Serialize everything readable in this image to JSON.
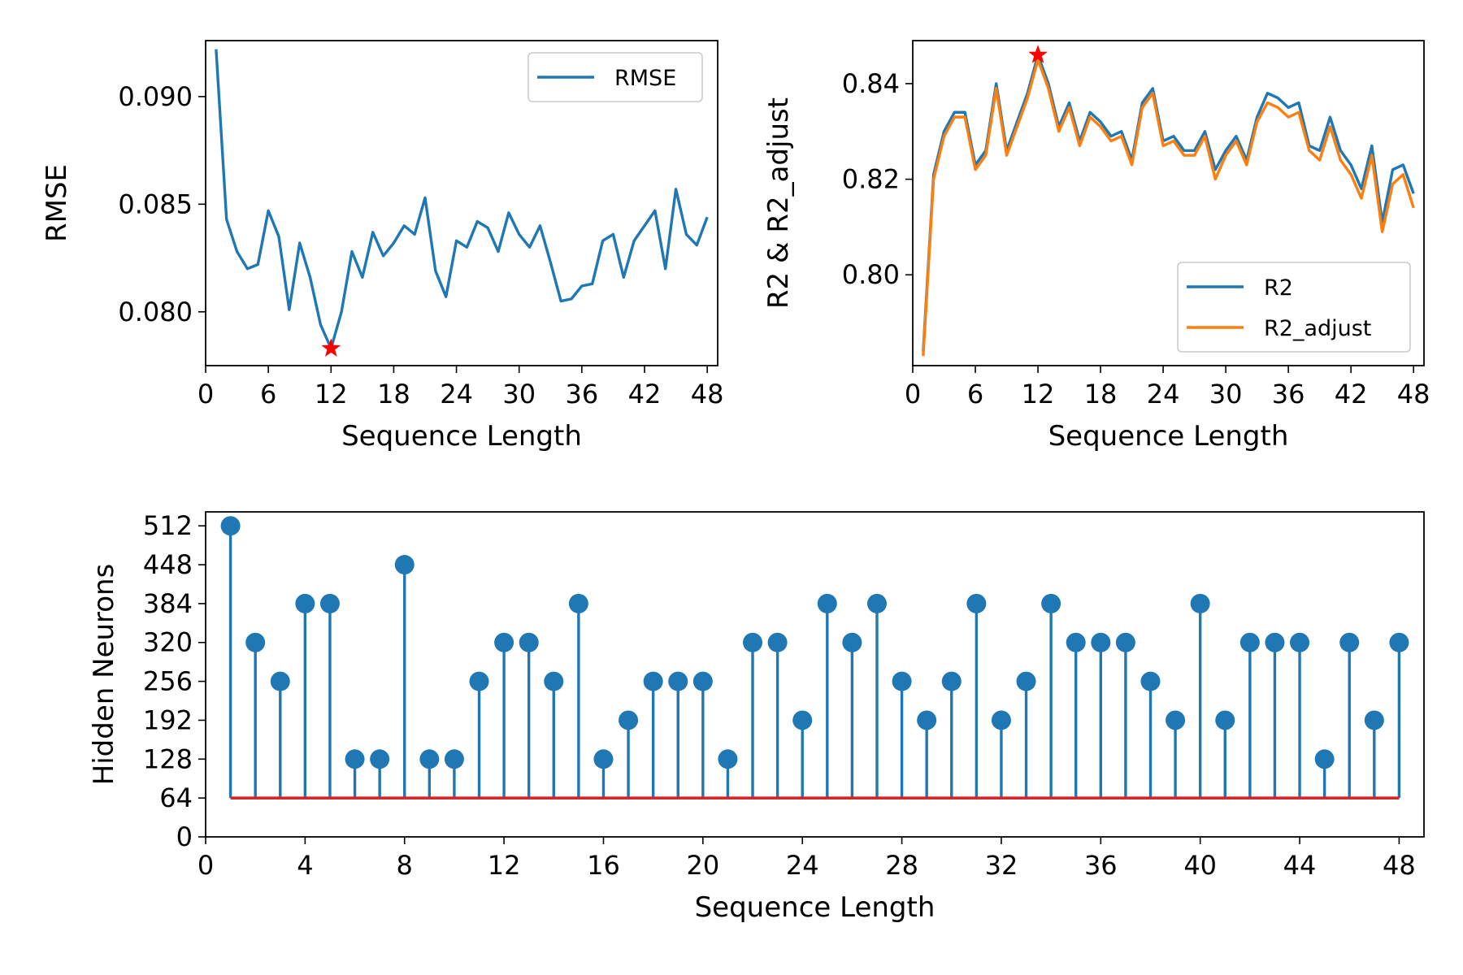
{
  "colors": {
    "blue": "#1f77b4",
    "orange": "#ff7f0e",
    "red": "#d62728",
    "star": "#ff0000"
  },
  "chart_data": [
    {
      "type": "line",
      "xlabel": "Sequence Length",
      "ylabel": "RMSE",
      "xlim": [
        0,
        49
      ],
      "ylim": [
        0.0775,
        0.0926
      ],
      "xticks": [
        0,
        6,
        12,
        18,
        24,
        30,
        36,
        42,
        48
      ],
      "xtick_labels": [
        "0",
        "6",
        "12",
        "18",
        "24",
        "30",
        "36",
        "42",
        "48"
      ],
      "yticks": [
        0.08,
        0.085,
        0.09
      ],
      "ytick_labels": [
        "0.080",
        "0.085",
        "0.090"
      ],
      "legend_position": "top-right",
      "x": [
        1,
        2,
        3,
        4,
        5,
        6,
        7,
        8,
        9,
        10,
        11,
        12,
        13,
        14,
        15,
        16,
        17,
        18,
        19,
        20,
        21,
        22,
        23,
        24,
        25,
        26,
        27,
        28,
        29,
        30,
        31,
        32,
        33,
        34,
        35,
        36,
        37,
        38,
        39,
        40,
        41,
        42,
        43,
        44,
        45,
        46,
        47,
        48
      ],
      "series": [
        {
          "name": "RMSE",
          "color": "#1f77b4",
          "values": [
            0.0922,
            0.0843,
            0.0828,
            0.082,
            0.0822,
            0.0847,
            0.0835,
            0.0801,
            0.0832,
            0.0816,
            0.0794,
            0.0783,
            0.08,
            0.0828,
            0.0816,
            0.0837,
            0.0826,
            0.0832,
            0.084,
            0.0836,
            0.0853,
            0.0819,
            0.0807,
            0.0833,
            0.083,
            0.0842,
            0.0839,
            0.0828,
            0.0846,
            0.0836,
            0.083,
            0.084,
            0.0823,
            0.0805,
            0.0806,
            0.0812,
            0.0813,
            0.0833,
            0.0836,
            0.0816,
            0.0833,
            0.084,
            0.0847,
            0.082,
            0.0857,
            0.0836,
            0.0831,
            0.0844
          ]
        }
      ],
      "marker": {
        "x": 12,
        "y": 0.0783,
        "symbol": "star",
        "color": "#ff0000"
      }
    },
    {
      "type": "line",
      "xlabel": "Sequence Length",
      "ylabel": "R2 & R2_adjust",
      "xlim": [
        0,
        49
      ],
      "ylim": [
        0.781,
        0.849
      ],
      "xticks": [
        0,
        6,
        12,
        18,
        24,
        30,
        36,
        42,
        48
      ],
      "xtick_labels": [
        "0",
        "6",
        "12",
        "18",
        "24",
        "30",
        "36",
        "42",
        "48"
      ],
      "yticks": [
        0.8,
        0.82,
        0.84
      ],
      "ytick_labels": [
        "0.80",
        "0.82",
        "0.84"
      ],
      "legend_position": "bottom-right",
      "x": [
        1,
        2,
        3,
        4,
        5,
        6,
        7,
        8,
        9,
        10,
        11,
        12,
        13,
        14,
        15,
        16,
        17,
        18,
        19,
        20,
        21,
        22,
        23,
        24,
        25,
        26,
        27,
        28,
        29,
        30,
        31,
        32,
        33,
        34,
        35,
        36,
        37,
        38,
        39,
        40,
        41,
        42,
        43,
        44,
        45,
        46,
        47,
        48
      ],
      "series": [
        {
          "name": "R2",
          "color": "#1f77b4",
          "values": [
            0.784,
            0.821,
            0.83,
            0.834,
            0.834,
            0.823,
            0.826,
            0.84,
            0.826,
            0.832,
            0.838,
            0.846,
            0.84,
            0.831,
            0.836,
            0.828,
            0.834,
            0.832,
            0.829,
            0.83,
            0.824,
            0.836,
            0.839,
            0.828,
            0.829,
            0.826,
            0.826,
            0.83,
            0.822,
            0.826,
            0.829,
            0.824,
            0.833,
            0.838,
            0.837,
            0.835,
            0.836,
            0.827,
            0.826,
            0.833,
            0.826,
            0.823,
            0.818,
            0.827,
            0.811,
            0.822,
            0.823,
            0.817
          ]
        },
        {
          "name": "R2_adjust",
          "color": "#ff7f0e",
          "values": [
            0.783,
            0.82,
            0.829,
            0.833,
            0.833,
            0.822,
            0.825,
            0.839,
            0.825,
            0.831,
            0.837,
            0.845,
            0.839,
            0.83,
            0.835,
            0.827,
            0.833,
            0.831,
            0.828,
            0.829,
            0.823,
            0.835,
            0.838,
            0.827,
            0.828,
            0.825,
            0.825,
            0.829,
            0.82,
            0.825,
            0.828,
            0.823,
            0.832,
            0.836,
            0.835,
            0.833,
            0.834,
            0.826,
            0.824,
            0.831,
            0.824,
            0.821,
            0.816,
            0.825,
            0.809,
            0.819,
            0.821,
            0.814
          ]
        }
      ],
      "marker": {
        "x": 12,
        "y": 0.846,
        "symbol": "star",
        "color": "#ff0000"
      }
    },
    {
      "type": "stem",
      "xlabel": "Sequence Length",
      "ylabel": "Hidden Neurons",
      "xlim": [
        0,
        49
      ],
      "ylim": [
        0,
        535
      ],
      "xticks": [
        0,
        4,
        8,
        12,
        16,
        20,
        24,
        28,
        32,
        36,
        40,
        44,
        48
      ],
      "xtick_labels": [
        "0",
        "4",
        "8",
        "12",
        "16",
        "20",
        "24",
        "28",
        "32",
        "36",
        "40",
        "44",
        "48"
      ],
      "yticks": [
        0,
        64,
        128,
        192,
        256,
        320,
        384,
        448,
        512
      ],
      "ytick_labels": [
        "0",
        "64",
        "128",
        "192",
        "256",
        "320",
        "384",
        "448",
        "512"
      ],
      "baseline": 64,
      "x": [
        1,
        2,
        3,
        4,
        5,
        6,
        7,
        8,
        9,
        10,
        11,
        12,
        13,
        14,
        15,
        16,
        17,
        18,
        19,
        20,
        21,
        22,
        23,
        24,
        25,
        26,
        27,
        28,
        29,
        30,
        31,
        32,
        33,
        34,
        35,
        36,
        37,
        38,
        39,
        40,
        41,
        42,
        43,
        44,
        45,
        46,
        47,
        48
      ],
      "values": [
        512,
        320,
        256,
        384,
        384,
        128,
        128,
        448,
        128,
        128,
        256,
        320,
        320,
        256,
        384,
        128,
        192,
        256,
        256,
        256,
        128,
        320,
        320,
        192,
        384,
        320,
        384,
        256,
        192,
        256,
        384,
        192,
        256,
        384,
        320,
        320,
        320,
        256,
        192,
        384,
        192,
        320,
        320,
        320,
        128,
        320,
        192,
        320
      ]
    }
  ]
}
